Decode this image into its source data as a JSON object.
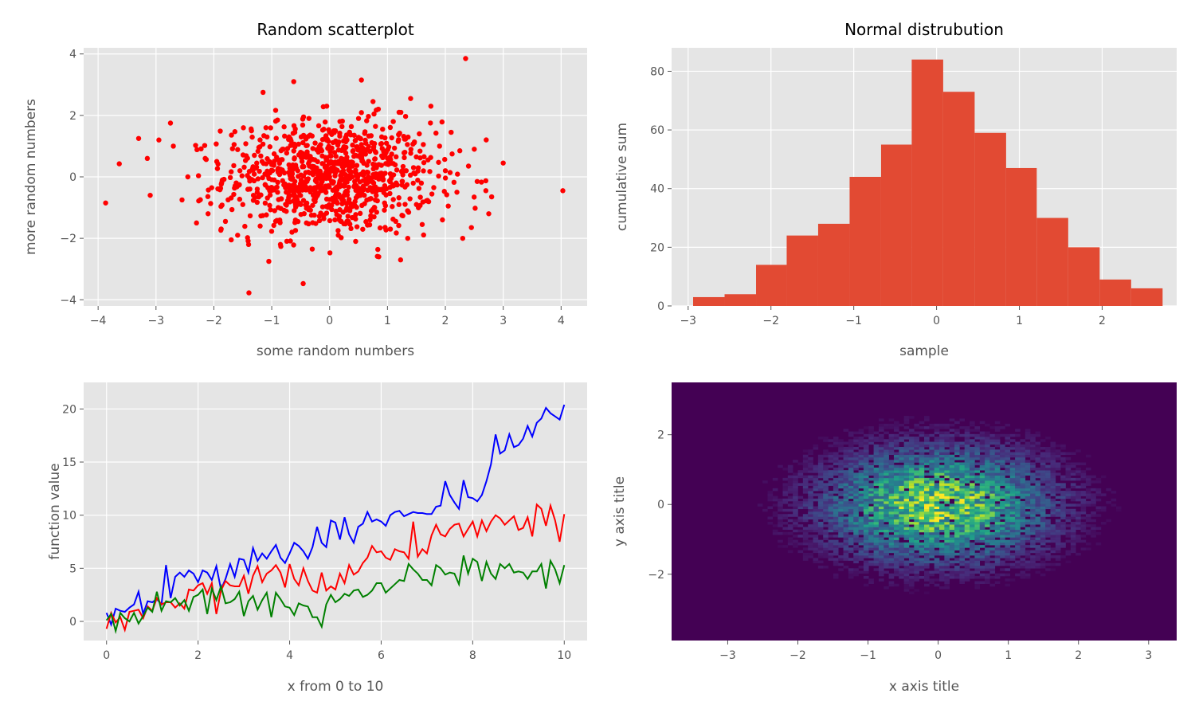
{
  "chart_data": [
    {
      "type": "scatter",
      "title": "Random scatterplot",
      "xlabel": "some random numbers",
      "ylabel": "more random numbers",
      "xlim": [
        -4.25,
        4.45
      ],
      "ylim": [
        -4.2,
        4.2
      ],
      "xticks": [
        -4,
        -3,
        -2,
        -1,
        0,
        1,
        2,
        3,
        4
      ],
      "yticks": [
        -4,
        -2,
        0,
        2,
        4
      ],
      "grid": true,
      "color": "#ff0000",
      "series": [
        {
          "points": [
            [
              -3.87,
              -0.85
            ],
            [
              -3.3,
              1.25
            ],
            [
              -3.15,
              0.6
            ],
            [
              -3.1,
              -0.6
            ],
            [
              -2.95,
              1.2
            ],
            [
              -2.75,
              1.75
            ],
            [
              -2.7,
              1.0
            ],
            [
              -2.55,
              -0.75
            ],
            [
              -2.45,
              0.0
            ],
            [
              -2.3,
              -1.5
            ],
            [
              -2.15,
              0.6
            ],
            [
              -2.1,
              -1.2
            ],
            [
              -1.95,
              0.5
            ],
            [
              -1.85,
              -0.1
            ],
            [
              -1.8,
              -1.45
            ],
            [
              -1.7,
              -2.05
            ],
            [
              -1.65,
              1.05
            ],
            [
              -1.55,
              0.2
            ],
            [
              -1.5,
              -0.9
            ],
            [
              -1.4,
              -2.2
            ],
            [
              -1.35,
              1.5
            ],
            [
              -1.3,
              0.7
            ],
            [
              -1.25,
              -0.4
            ],
            [
              -1.2,
              -1.6
            ],
            [
              -1.15,
              2.75
            ],
            [
              -1.1,
              1.6
            ],
            [
              -1.05,
              -2.75
            ],
            [
              -1.0,
              0.4
            ],
            [
              -0.95,
              -1.1
            ],
            [
              -0.9,
              1.85
            ],
            [
              -0.85,
              -2.2
            ],
            [
              -0.8,
              0.9
            ],
            [
              -0.75,
              -0.5
            ],
            [
              -0.7,
              1.3
            ],
            [
              -0.65,
              -1.8
            ],
            [
              -0.62,
              3.1
            ],
            [
              -0.55,
              0.2
            ],
            [
              -0.5,
              -0.9
            ],
            [
              -0.45,
              1.95
            ],
            [
              -0.4,
              -1.5
            ],
            [
              -0.35,
              0.5
            ],
            [
              -0.3,
              -2.35
            ],
            [
              -0.25,
              1.1
            ],
            [
              -0.2,
              -0.3
            ],
            [
              -0.15,
              0.9
            ],
            [
              -0.1,
              -1.25
            ],
            [
              -0.05,
              2.3
            ],
            [
              0.0,
              0.0
            ],
            [
              0.05,
              -0.7
            ],
            [
              0.1,
              1.5
            ],
            [
              0.15,
              -1.9
            ],
            [
              0.2,
              0.6
            ],
            [
              0.25,
              -0.3
            ],
            [
              0.3,
              1.2
            ],
            [
              0.35,
              -1.1
            ],
            [
              0.4,
              0.35
            ],
            [
              0.45,
              -2.1
            ],
            [
              0.5,
              1.9
            ],
            [
              0.55,
              3.15
            ],
            [
              0.6,
              -0.6
            ],
            [
              0.65,
              0.9
            ],
            [
              0.7,
              -1.4
            ],
            [
              0.75,
              2.45
            ],
            [
              0.8,
              0.1
            ],
            [
              0.85,
              -2.6
            ],
            [
              0.9,
              1.3
            ],
            [
              0.95,
              -0.85
            ],
            [
              1.0,
              0.6
            ],
            [
              1.05,
              -1.7
            ],
            [
              1.1,
              1.8
            ],
            [
              1.15,
              -0.2
            ],
            [
              1.2,
              2.1
            ],
            [
              1.25,
              -1.25
            ],
            [
              1.3,
              0.8
            ],
            [
              1.35,
              -2.0
            ],
            [
              1.4,
              2.55
            ],
            [
              1.45,
              0.3
            ],
            [
              1.5,
              -0.9
            ],
            [
              1.55,
              1.4
            ],
            [
              1.6,
              -1.55
            ],
            [
              1.7,
              0.55
            ],
            [
              1.75,
              2.3
            ],
            [
              1.8,
              -0.35
            ],
            [
              1.9,
              1.0
            ],
            [
              1.95,
              -1.4
            ],
            [
              2.0,
              0.2
            ],
            [
              2.05,
              -0.95
            ],
            [
              2.1,
              1.45
            ],
            [
              2.2,
              -0.5
            ],
            [
              2.25,
              0.85
            ],
            [
              2.3,
              -2.0
            ],
            [
              2.35,
              3.85
            ],
            [
              2.4,
              0.35
            ],
            [
              2.45,
              -1.65
            ],
            [
              2.5,
              0.9
            ],
            [
              2.55,
              -0.15
            ],
            [
              2.7,
              -0.45
            ],
            [
              2.75,
              -1.2
            ],
            [
              2.8,
              -0.65
            ],
            [
              3.0,
              0.45
            ],
            [
              4.03,
              -0.45
            ],
            [
              -0.85,
              0.25
            ],
            [
              -0.6,
              -0.15
            ],
            [
              -0.35,
              0.35
            ],
            [
              -0.15,
              -0.45
            ],
            [
              0.05,
              0.45
            ],
            [
              0.25,
              -0.6
            ],
            [
              0.45,
              0.7
            ],
            [
              0.65,
              -0.2
            ],
            [
              -0.5,
              0.8
            ],
            [
              -0.25,
              -0.8
            ],
            [
              0.1,
              0.25
            ],
            [
              0.35,
              -0.05
            ],
            [
              -0.7,
              -0.6
            ],
            [
              0.85,
              0.4
            ],
            [
              -1.05,
              -0.05
            ],
            [
              1.05,
              0.1
            ],
            [
              -0.45,
              1.35
            ],
            [
              0.2,
              -1.45
            ],
            [
              -0.1,
              1.55
            ],
            [
              0.55,
              1.05
            ]
          ]
        }
      ]
    },
    {
      "type": "bar",
      "title": "Normal distrubution",
      "xlabel": "sample",
      "ylabel": "cumulative sum",
      "xlim": [
        -3.2,
        2.9
      ],
      "ylim": [
        0,
        88
      ],
      "xticks": [
        -3,
        -2,
        -1,
        0,
        1,
        2
      ],
      "yticks": [
        0,
        20,
        40,
        60,
        80
      ],
      "grid": true,
      "color": "#e24a33",
      "bin_edges": [
        -2.94,
        -2.56,
        -2.18,
        -1.81,
        -1.43,
        -1.05,
        -0.67,
        -0.3,
        0.08,
        0.46,
        0.84,
        1.21,
        1.59,
        1.97,
        2.35,
        2.73
      ],
      "values": [
        3,
        4,
        14,
        24,
        28,
        44,
        55,
        84,
        73,
        59,
        47,
        30,
        20,
        9,
        6
      ]
    },
    {
      "type": "line",
      "title": "",
      "xlabel": "x from 0 to 10",
      "ylabel": "function value",
      "xlim": [
        -0.5,
        10.5
      ],
      "ylim": [
        -1.8,
        22.5
      ],
      "xticks": [
        0,
        2,
        4,
        6,
        8,
        10
      ],
      "yticks": [
        0,
        5,
        10,
        15,
        20
      ],
      "grid": true,
      "x": [
        0,
        0.1,
        0.2,
        0.3,
        0.4,
        0.5,
        0.6,
        0.7,
        0.8,
        0.9,
        1.0,
        1.1,
        1.2,
        1.3,
        1.4,
        1.5,
        1.6,
        1.7,
        1.8,
        1.9,
        2.0,
        2.1,
        2.2,
        2.3,
        2.4,
        2.5,
        2.6,
        2.7,
        2.8,
        2.9,
        3.0,
        3.1,
        3.2,
        3.3,
        3.4,
        3.5,
        3.6,
        3.7,
        3.8,
        3.9,
        4.0,
        4.1,
        4.2,
        4.3,
        4.4,
        4.5,
        4.6,
        4.7,
        4.8,
        4.9,
        5.0,
        5.1,
        5.2,
        5.3,
        5.4,
        5.5,
        5.6,
        5.7,
        5.8,
        5.9,
        6.0,
        6.1,
        6.2,
        6.3,
        6.4,
        6.5,
        6.6,
        6.7,
        6.8,
        6.9,
        7.0,
        7.1,
        7.2,
        7.3,
        7.4,
        7.5,
        7.6,
        7.7,
        7.8,
        7.9,
        8.0,
        8.1,
        8.2,
        8.3,
        8.4,
        8.5,
        8.6,
        8.7,
        8.8,
        8.9,
        9.0,
        9.1,
        9.2,
        9.3,
        9.4,
        9.5,
        9.6,
        9.7,
        9.8,
        9.9,
        10.0
      ],
      "series": [
        {
          "color": "#0000ff",
          "values": [
            0.8,
            -0.3,
            1.2,
            1.0,
            0.9,
            1.3,
            1.6,
            2.8,
            0.7,
            1.9,
            1.8,
            2.1,
            1.6,
            5.3,
            2.2,
            4.2,
            4.6,
            4.2,
            4.8,
            4.5,
            3.7,
            4.8,
            4.6,
            3.9,
            5.2,
            3.0,
            4.0,
            5.4,
            4.2,
            5.9,
            5.8,
            4.6,
            6.9,
            5.7,
            6.4,
            5.9,
            6.6,
            7.2,
            6.0,
            5.5,
            6.4,
            7.4,
            7.1,
            6.6,
            5.9,
            7.0,
            8.9,
            7.4,
            7.0,
            9.5,
            9.3,
            7.7,
            9.8,
            8.2,
            7.4,
            8.9,
            9.2,
            10.3,
            9.4,
            9.6,
            9.4,
            9.0,
            10.0,
            10.3,
            10.4,
            9.9,
            10.1,
            10.3,
            10.2,
            10.2,
            10.1,
            10.1,
            10.8,
            10.9,
            13.2,
            11.9,
            11.2,
            10.6,
            13.3,
            11.7,
            11.6,
            11.3,
            11.9,
            13.2,
            14.8,
            17.6,
            15.8,
            16.1,
            17.6,
            16.4,
            16.6,
            17.2,
            18.4,
            17.4,
            18.7,
            19.1,
            20.1,
            19.6,
            19.3,
            19.0,
            20.4
          ]
        },
        {
          "color": "#ff0000",
          "values": [
            -0.7,
            0.8,
            -0.1,
            0.4,
            -0.8,
            0.9,
            1.0,
            1.1,
            0.3,
            1.4,
            1.0,
            2.2,
            1.6,
            1.8,
            1.8,
            1.3,
            1.7,
            1.2,
            3.0,
            2.9,
            3.4,
            3.6,
            2.6,
            3.6,
            0.7,
            2.9,
            3.8,
            3.4,
            3.3,
            3.3,
            4.3,
            2.6,
            4.3,
            5.2,
            3.7,
            4.5,
            4.8,
            5.3,
            4.6,
            3.2,
            5.4,
            4.0,
            3.4,
            5.0,
            3.8,
            2.9,
            2.7,
            4.6,
            2.9,
            3.3,
            3.0,
            4.5,
            3.6,
            5.3,
            4.4,
            4.7,
            5.5,
            6.0,
            7.1,
            6.5,
            6.6,
            6.0,
            5.8,
            6.8,
            6.6,
            6.5,
            5.9,
            9.4,
            6.1,
            6.8,
            6.4,
            8.1,
            9.1,
            8.2,
            8.0,
            8.7,
            9.1,
            9.2,
            8.0,
            8.7,
            9.4,
            8.0,
            9.5,
            8.5,
            9.4,
            10.0,
            9.7,
            9.1,
            9.5,
            9.9,
            8.6,
            8.8,
            9.8,
            8.0,
            11.0,
            10.6,
            9.0,
            10.9,
            9.5,
            7.5,
            10.1
          ]
        },
        {
          "color": "#008000",
          "values": [
            0.1,
            0.7,
            -0.9,
            0.8,
            0.3,
            0.0,
            0.8,
            -0.2,
            0.5,
            1.3,
            0.9,
            2.8,
            1.0,
            1.9,
            1.8,
            2.2,
            1.5,
            2.0,
            1.0,
            2.3,
            2.5,
            3.0,
            0.7,
            3.1,
            2.0,
            3.3,
            1.7,
            1.8,
            2.1,
            2.8,
            0.5,
            1.9,
            2.4,
            1.1,
            2.0,
            2.7,
            0.4,
            2.7,
            2.1,
            1.4,
            1.3,
            0.6,
            1.7,
            1.5,
            1.4,
            0.4,
            0.4,
            -0.5,
            1.6,
            2.5,
            1.8,
            2.1,
            2.6,
            2.4,
            2.9,
            3.0,
            2.3,
            2.5,
            2.9,
            3.6,
            3.6,
            2.7,
            3.1,
            3.5,
            3.9,
            3.8,
            5.4,
            4.9,
            4.5,
            3.9,
            3.9,
            3.4,
            5.3,
            5.0,
            4.4,
            4.6,
            4.5,
            3.5,
            6.2,
            4.5,
            5.9,
            5.6,
            3.8,
            5.6,
            4.5,
            4.0,
            5.4,
            5.0,
            5.4,
            4.6,
            4.7,
            4.6,
            4.0,
            4.7,
            4.7,
            5.4,
            3.1,
            5.7,
            4.9,
            3.6,
            5.3
          ]
        }
      ]
    },
    {
      "type": "heatmap",
      "title": "",
      "xlabel": "x axis title",
      "ylabel": "y axis title",
      "xlim": [
        -3.8,
        3.4
      ],
      "ylim": [
        -3.9,
        3.5
      ],
      "xticks": [
        -3,
        -2,
        -1,
        0,
        1,
        2,
        3
      ],
      "yticks": [
        -2,
        0,
        2
      ],
      "colormap": "viridis",
      "background": "#440154",
      "distribution": "2D histogram of two standard normal samples",
      "center": [
        0,
        0
      ],
      "spread": [
        1,
        1
      ]
    }
  ]
}
